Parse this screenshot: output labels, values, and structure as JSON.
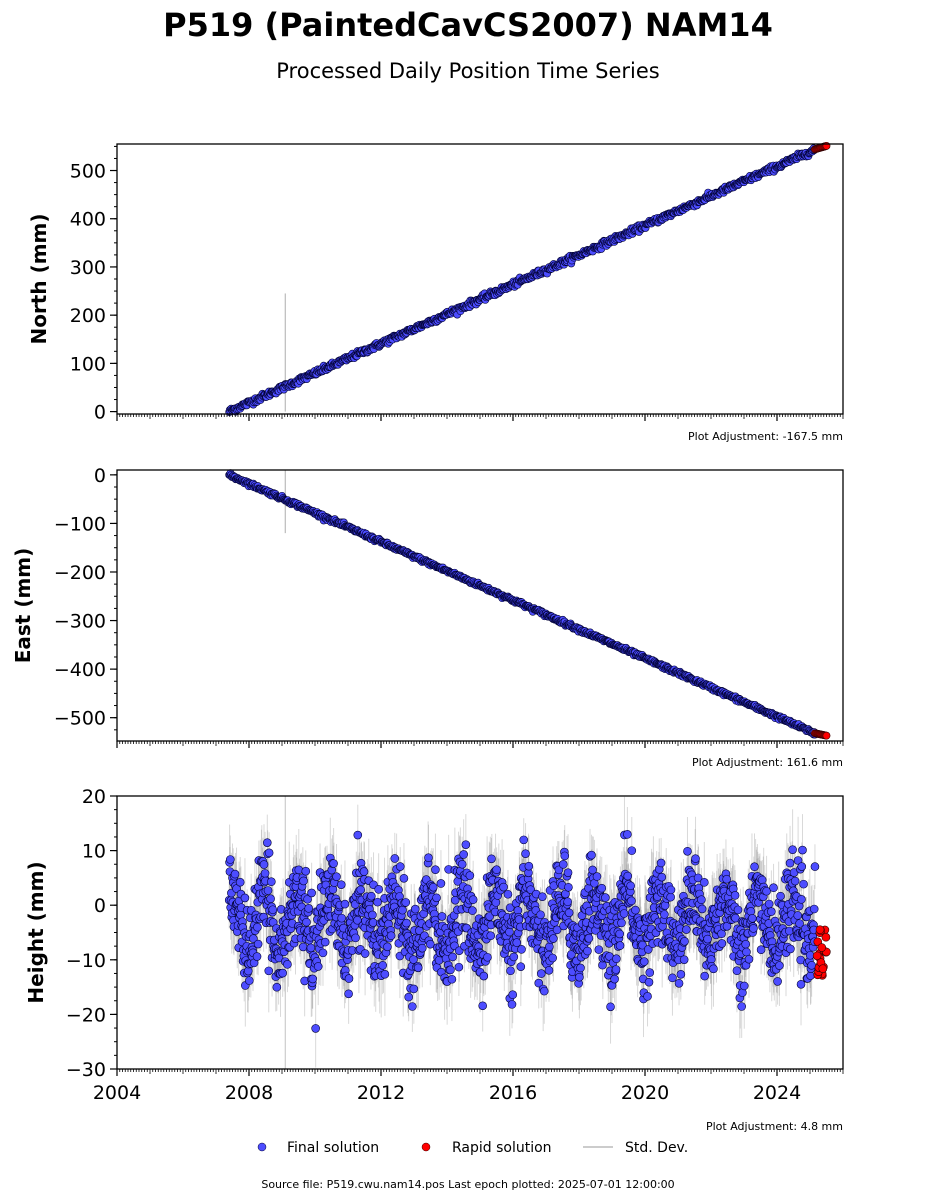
{
  "header": {
    "title": "P519 (PaintedCavCS2007) NAM14",
    "subtitle": "Processed Daily Position Time Series"
  },
  "legend": {
    "final": "Final solution",
    "rapid": "Rapid solution",
    "std": "Std. Dev."
  },
  "footer": {
    "source": "Source file: P519.cwu.nam14.pos  Last epoch plotted: 2025-07-01 12:00:00"
  },
  "colors": {
    "final": "#4d4dff",
    "final_edge": "#000033",
    "rapid": "#ff0000",
    "std": "#808080"
  },
  "chart_data": [
    {
      "type": "scatter",
      "ylabel": "North (mm)",
      "adjustment": "Plot Adjustment: -167.5 mm",
      "xlim": [
        2004.0,
        2026.0
      ],
      "ylim": [
        -5,
        555
      ],
      "yticks": [
        0,
        100,
        200,
        300,
        400,
        500
      ],
      "ytick_labels": [
        "0",
        "100",
        "200",
        "300",
        "400",
        "500"
      ],
      "grid": false,
      "series": [
        {
          "name": "Final solution",
          "trend": {
            "x": [
              2007.4,
              2025.1
            ],
            "y": [
              0,
              542
            ]
          },
          "x_range": [
            2007.4,
            2025.15
          ],
          "noise_mm": 3
        },
        {
          "name": "Rapid solution",
          "x": [
            2025.15,
            2025.5
          ],
          "y": [
            544,
            551
          ]
        }
      ],
      "outliers": [
        {
          "x": 2009.1,
          "y": 55,
          "std_low": 0,
          "std_high": 245
        }
      ]
    },
    {
      "type": "scatter",
      "ylabel": "East (mm)",
      "adjustment": "Plot Adjustment: 161.6 mm",
      "xlim": [
        2004.0,
        2026.0
      ],
      "ylim": [
        -548,
        10
      ],
      "yticks": [
        0,
        -100,
        -200,
        -300,
        -400,
        -500
      ],
      "ytick_labels": [
        "0",
        "−100",
        "−200",
        "−300",
        "−400",
        "−500"
      ],
      "grid": false,
      "series": [
        {
          "name": "Final solution",
          "trend": {
            "x": [
              2007.4,
              2025.1
            ],
            "y": [
              0,
              -531
            ]
          },
          "x_range": [
            2007.4,
            2025.15
          ],
          "noise_mm": 2
        },
        {
          "name": "Rapid solution",
          "x": [
            2025.15,
            2025.5
          ],
          "y": [
            -532,
            -537
          ]
        }
      ],
      "outliers": [
        {
          "x": 2009.1,
          "y": -50,
          "std_low": -120,
          "std_high": 10
        }
      ]
    },
    {
      "type": "scatter",
      "ylabel": "Height (mm)",
      "adjustment": "Plot Adjustment: 4.8 mm",
      "xlim": [
        2004.0,
        2026.0
      ],
      "ylim": [
        -30,
        20
      ],
      "yticks": [
        20,
        10,
        0,
        -10,
        -20,
        -30
      ],
      "ytick_labels": [
        "20",
        "10",
        "0",
        "−10",
        "−20",
        "−30"
      ],
      "xticks": [
        2004,
        2008,
        2012,
        2016,
        2020,
        2024
      ],
      "xtick_labels": [
        "2004",
        "2008",
        "2012",
        "2016",
        "2020",
        "2024"
      ],
      "grid": false,
      "series": [
        {
          "name": "Final solution",
          "mean": -3,
          "seasonal_amplitude": 5,
          "noise_mm": 4,
          "x_range": [
            2007.4,
            2025.15
          ],
          "y_range": [
            -27,
            19
          ]
        },
        {
          "name": "Rapid solution",
          "x": [
            2025.2,
            2025.5
          ],
          "y_range": [
            -13,
            -4
          ]
        }
      ]
    }
  ]
}
